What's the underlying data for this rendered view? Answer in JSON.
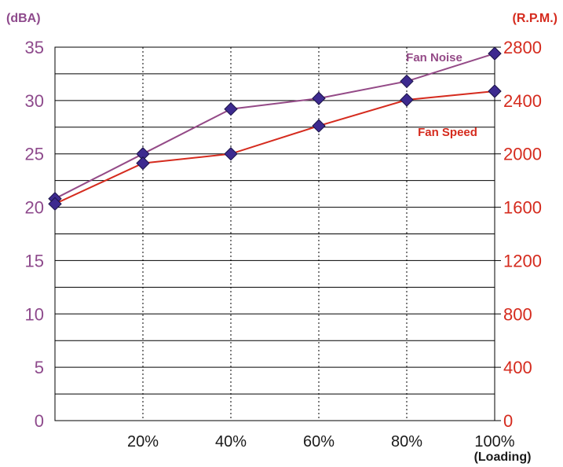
{
  "chart_data": {
    "type": "line",
    "title": "",
    "xlabel": "(Loading)",
    "ylabel_left": "(dBA)",
    "ylabel_right": "(R.P.M.)",
    "x": [
      0,
      20,
      40,
      60,
      80,
      100
    ],
    "x_tick_labels": [
      "20%",
      "40%",
      "60%",
      "80%",
      "100%"
    ],
    "x_tick_values": [
      20,
      40,
      60,
      80,
      100
    ],
    "y_left_ticks": [
      "0",
      "5",
      "10",
      "15",
      "20",
      "25",
      "30",
      "35"
    ],
    "y_right_ticks": [
      "0",
      "400",
      "800",
      "1200",
      "1600",
      "2000",
      "2400",
      "2800"
    ],
    "ylim_left": [
      0,
      35
    ],
    "ylim_right": [
      0,
      2800
    ],
    "series": [
      {
        "name": "Fan Noise",
        "axis": "left",
        "color": "#944a87",
        "values": [
          20.8,
          25.0,
          29.2,
          30.2,
          31.8,
          34.4
        ]
      },
      {
        "name": "Fan Speed",
        "axis": "right",
        "color": "#d52b1e",
        "values": [
          1625,
          1930,
          2000,
          2210,
          2405,
          2470
        ]
      }
    ],
    "colors": {
      "left_axis": "#8e4a8c",
      "right_axis": "#d52b1e",
      "marker_fill": "#3d2a8f",
      "marker_stroke": "#1b1347"
    },
    "grid": true
  }
}
